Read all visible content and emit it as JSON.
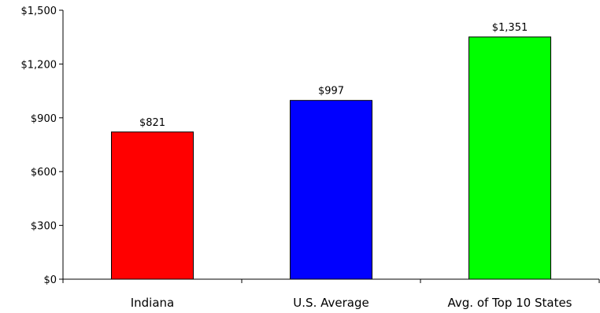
{
  "chart_data": {
    "type": "bar",
    "categories": [
      "Indiana",
      "U.S. Average",
      "Avg. of Top 10 States"
    ],
    "values": [
      821,
      997,
      1351
    ],
    "data_labels": [
      "$821",
      "$997",
      "$1,351"
    ],
    "colors": [
      "#ff0000",
      "#0000ff",
      "#00ff00"
    ],
    "ylim": [
      0,
      1500
    ],
    "yticks": [
      0,
      300,
      600,
      900,
      1200,
      1500
    ],
    "ytick_labels": [
      "$0",
      "$300",
      "$600",
      "$900",
      "$1,200",
      "$1,500"
    ],
    "grid": false,
    "legend": "none",
    "title": "",
    "xlabel": "",
    "ylabel": ""
  }
}
